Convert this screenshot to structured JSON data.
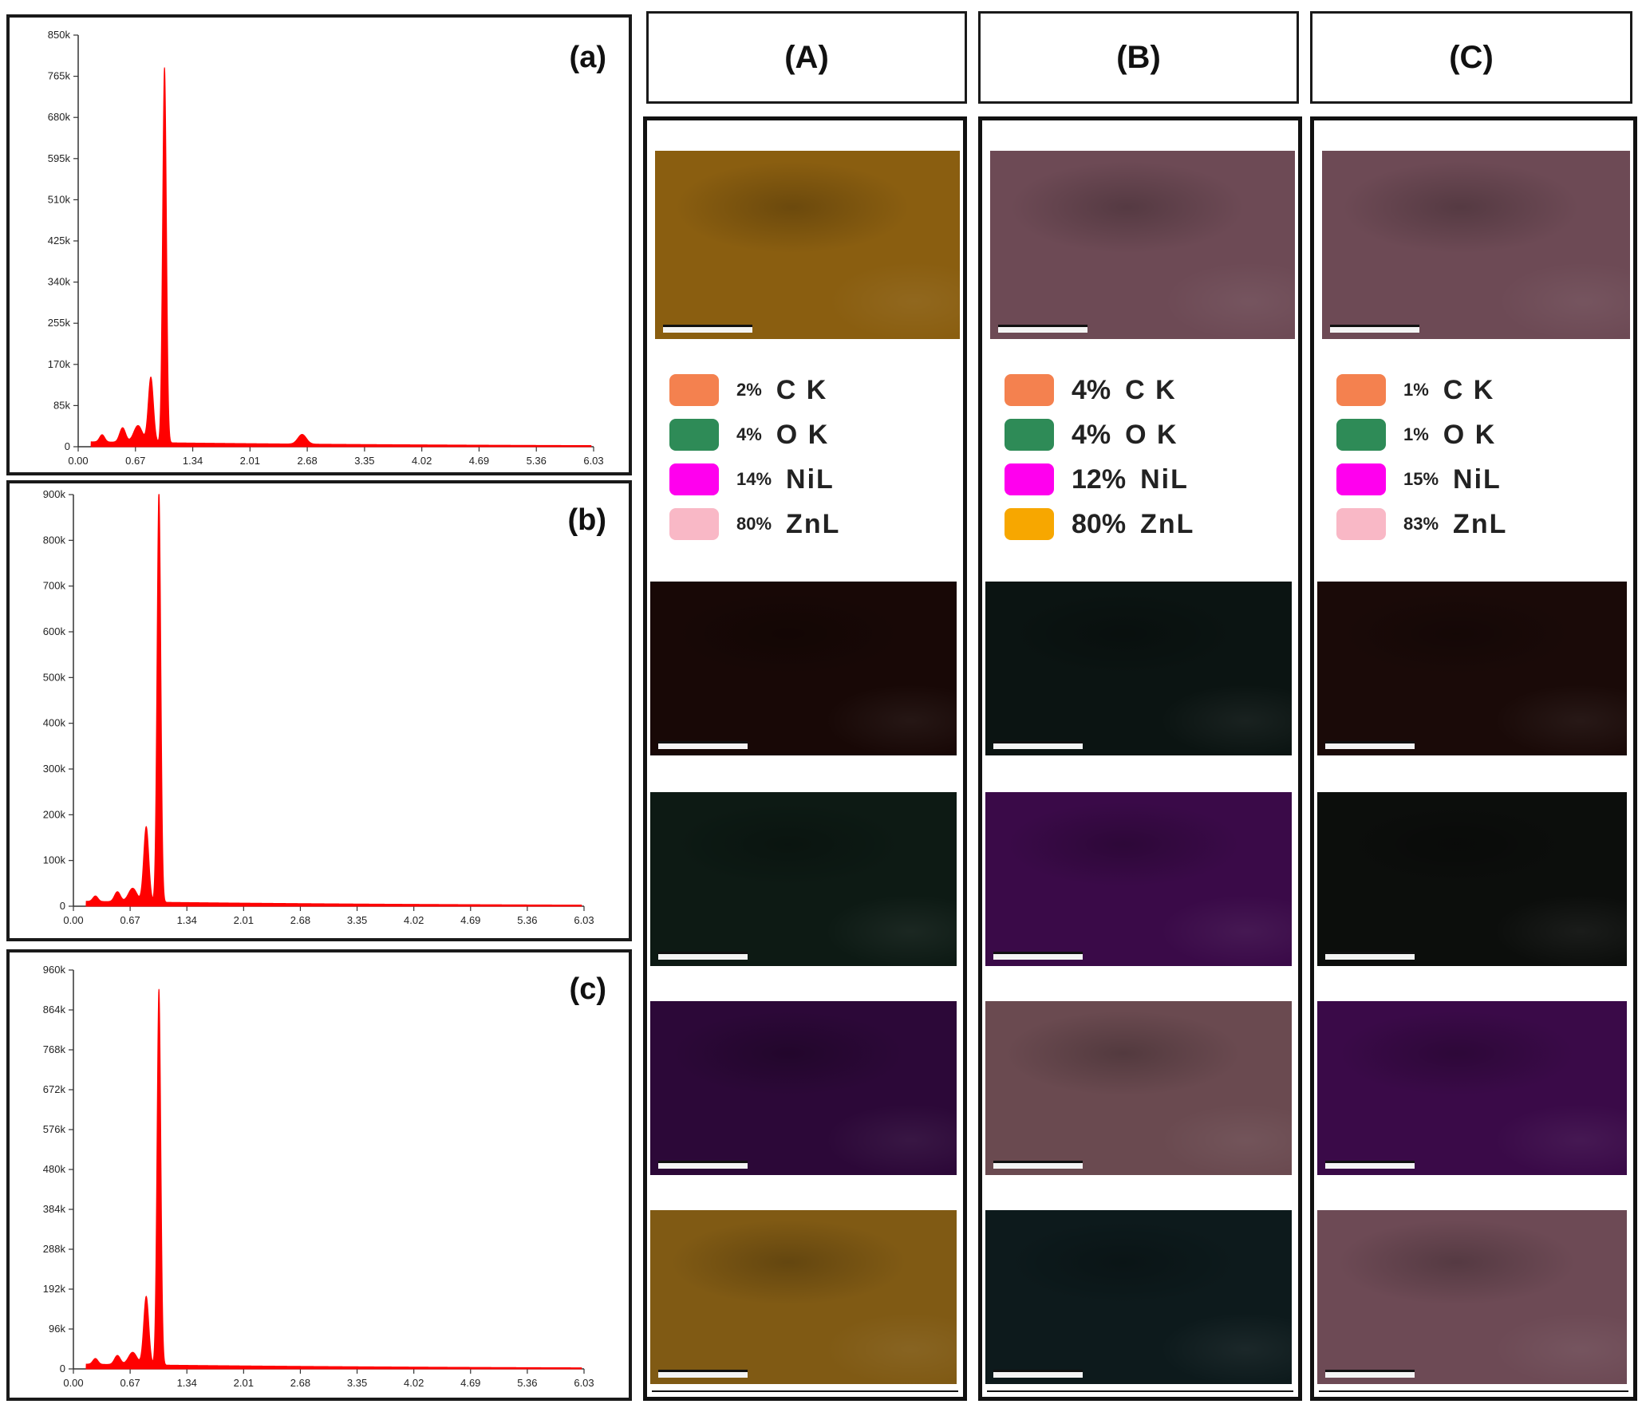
{
  "chart_data": [
    {
      "type": "area",
      "panel_label": "(a)",
      "color": "#ff0000",
      "xlabel": "",
      "ylabel": "",
      "xlim": [
        0,
        6.03
      ],
      "ylim": [
        0,
        850000
      ],
      "x_ticks": [
        "0.00",
        "0.67",
        "1.34",
        "2.01",
        "2.68",
        "3.35",
        "4.02",
        "4.69",
        "5.36",
        "6.03"
      ],
      "y_ticks": [
        "0",
        "85k",
        "170k",
        "255k",
        "340k",
        "425k",
        "510k",
        "595k",
        "680k",
        "765k",
        "850k"
      ],
      "peaks": [
        {
          "x": 0.28,
          "y": 15000,
          "w": 0.03
        },
        {
          "x": 0.52,
          "y": 30000,
          "w": 0.035
        },
        {
          "x": 0.7,
          "y": 35000,
          "w": 0.05
        },
        {
          "x": 0.85,
          "y": 135000,
          "w": 0.03
        },
        {
          "x": 1.01,
          "y": 775000,
          "w": 0.022
        },
        {
          "x": 2.62,
          "y": 20000,
          "w": 0.05
        }
      ]
    },
    {
      "type": "area",
      "panel_label": "(b)",
      "color": "#ff0000",
      "xlabel": "",
      "ylabel": "",
      "xlim": [
        0,
        6.03
      ],
      "ylim": [
        0,
        900000
      ],
      "x_ticks": [
        "0.00",
        "0.67",
        "1.34",
        "2.01",
        "2.68",
        "3.35",
        "4.02",
        "4.69",
        "5.36",
        "6.03"
      ],
      "y_ticks": [
        "0",
        "100k",
        "200k",
        "300k",
        "400k",
        "500k",
        "600k",
        "700k",
        "800k",
        "900k"
      ],
      "peaks": [
        {
          "x": 0.26,
          "y": 12000,
          "w": 0.03
        },
        {
          "x": 0.52,
          "y": 22000,
          "w": 0.035
        },
        {
          "x": 0.7,
          "y": 30000,
          "w": 0.05
        },
        {
          "x": 0.86,
          "y": 165000,
          "w": 0.03
        },
        {
          "x": 1.01,
          "y": 900000,
          "w": 0.022
        }
      ]
    },
    {
      "type": "area",
      "panel_label": "(c)",
      "color": "#ff0000",
      "xlabel": "",
      "ylabel": "",
      "xlim": [
        0,
        6.03
      ],
      "ylim": [
        0,
        960000
      ],
      "x_ticks": [
        "0.00",
        "0.67",
        "1.34",
        "2.01",
        "2.68",
        "3.35",
        "4.02",
        "4.69",
        "5.36",
        "6.03"
      ],
      "y_ticks": [
        "0",
        "96k",
        "192k",
        "288k",
        "384k",
        "480k",
        "576k",
        "672k",
        "768k",
        "864k",
        "960k"
      ],
      "peaks": [
        {
          "x": 0.26,
          "y": 14000,
          "w": 0.03
        },
        {
          "x": 0.52,
          "y": 22000,
          "w": 0.035
        },
        {
          "x": 0.7,
          "y": 30000,
          "w": 0.05
        },
        {
          "x": 0.86,
          "y": 165000,
          "w": 0.03
        },
        {
          "x": 1.01,
          "y": 905000,
          "w": 0.022
        }
      ]
    }
  ],
  "columns": [
    {
      "label": "(A)",
      "legend": [
        {
          "pct": "2%",
          "elem": "C K",
          "color": "#f4814f"
        },
        {
          "pct": "4%",
          "elem": "O K",
          "color": "#2e8b57"
        },
        {
          "pct": "14%",
          "elem": "NiL",
          "color": "#ff00ee"
        },
        {
          "pct": "80%",
          "elem": "ZnL",
          "color": "#f9b8c6"
        }
      ],
      "map_colors": [
        "#8a5e10",
        "#180806",
        "#0d1a14",
        "#2c0838",
        "#805a14"
      ]
    },
    {
      "label": "(B)",
      "legend": [
        {
          "pct": "4%",
          "elem": "C K",
          "color": "#f4814f"
        },
        {
          "pct": "4%",
          "elem": "O K",
          "color": "#2e8b57"
        },
        {
          "pct": "12%",
          "elem": "NiL",
          "color": "#ff00ee"
        },
        {
          "pct": "80%",
          "elem": "ZnL",
          "color": "#f7a700"
        }
      ],
      "map_colors": [
        "#6d4a55",
        "#0b1412",
        "#3a0a48",
        "#6a4a50",
        "#0d1a1c"
      ]
    },
    {
      "label": "(C)",
      "legend": [
        {
          "pct": "1%",
          "elem": "C K",
          "color": "#f4814f"
        },
        {
          "pct": "1%",
          "elem": "O K",
          "color": "#2e8b57"
        },
        {
          "pct": "15%",
          "elem": "NiL",
          "color": "#ff00ee"
        },
        {
          "pct": "83%",
          "elem": "ZnL",
          "color": "#f9b8c6"
        }
      ],
      "map_colors": [
        "#6d4a55",
        "#1a0a08",
        "#0c0e0c",
        "#3a0a48",
        "#6d4a55"
      ]
    }
  ]
}
